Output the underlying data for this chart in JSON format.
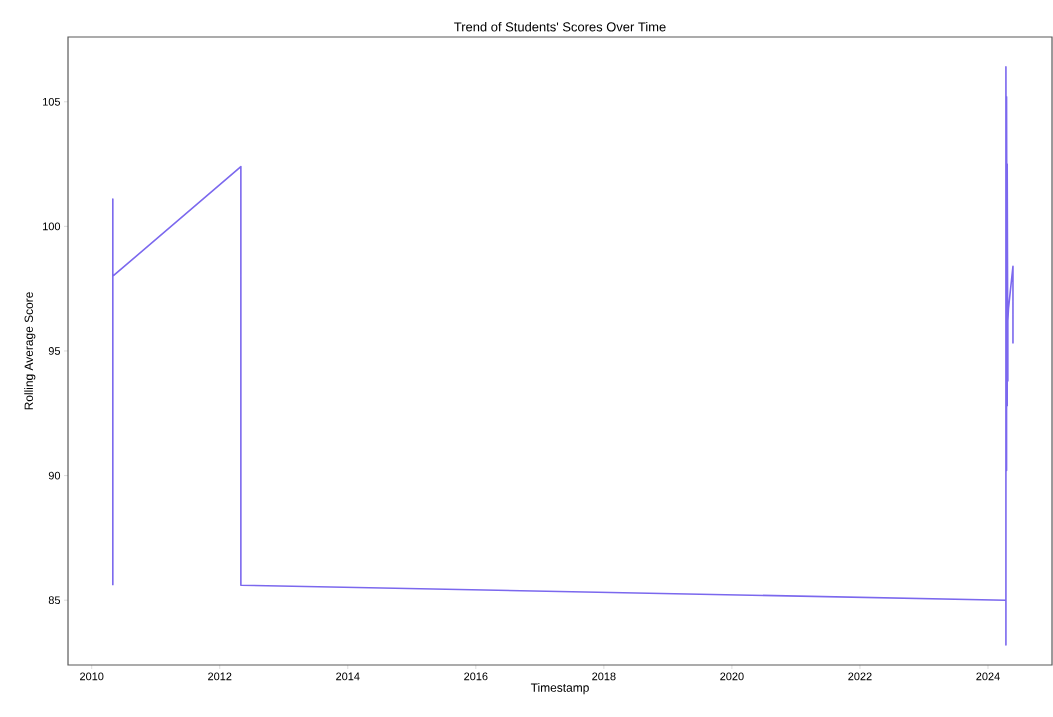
{
  "chart_data": {
    "type": "line",
    "title": "Trend of Students' Scores Over Time",
    "xlabel": "Timestamp",
    "ylabel": "Rolling Average Score",
    "xlim": [
      2009.63,
      2025.0
    ],
    "ylim": [
      82.4,
      107.6
    ],
    "xticks": [
      2010,
      2012,
      2014,
      2016,
      2018,
      2020,
      2022,
      2024
    ],
    "yticks": [
      85,
      90,
      95,
      100,
      105
    ],
    "series": [
      {
        "color": "#7b68ee",
        "x": [
          2010.33,
          2010.33,
          2010.33,
          2012.33,
          2012.33,
          2024.28,
          2024.28,
          2024.28,
          2024.29,
          2024.29,
          2024.3,
          2024.3,
          2024.31,
          2024.31,
          2024.32,
          2024.39,
          2024.39
        ],
        "values": [
          85.6,
          101.1,
          98.0,
          102.4,
          85.6,
          85.0,
          83.2,
          106.4,
          90.2,
          105.2,
          92.8,
          102.5,
          93.8,
          96.2,
          96.7,
          98.4,
          95.3
        ]
      }
    ]
  }
}
